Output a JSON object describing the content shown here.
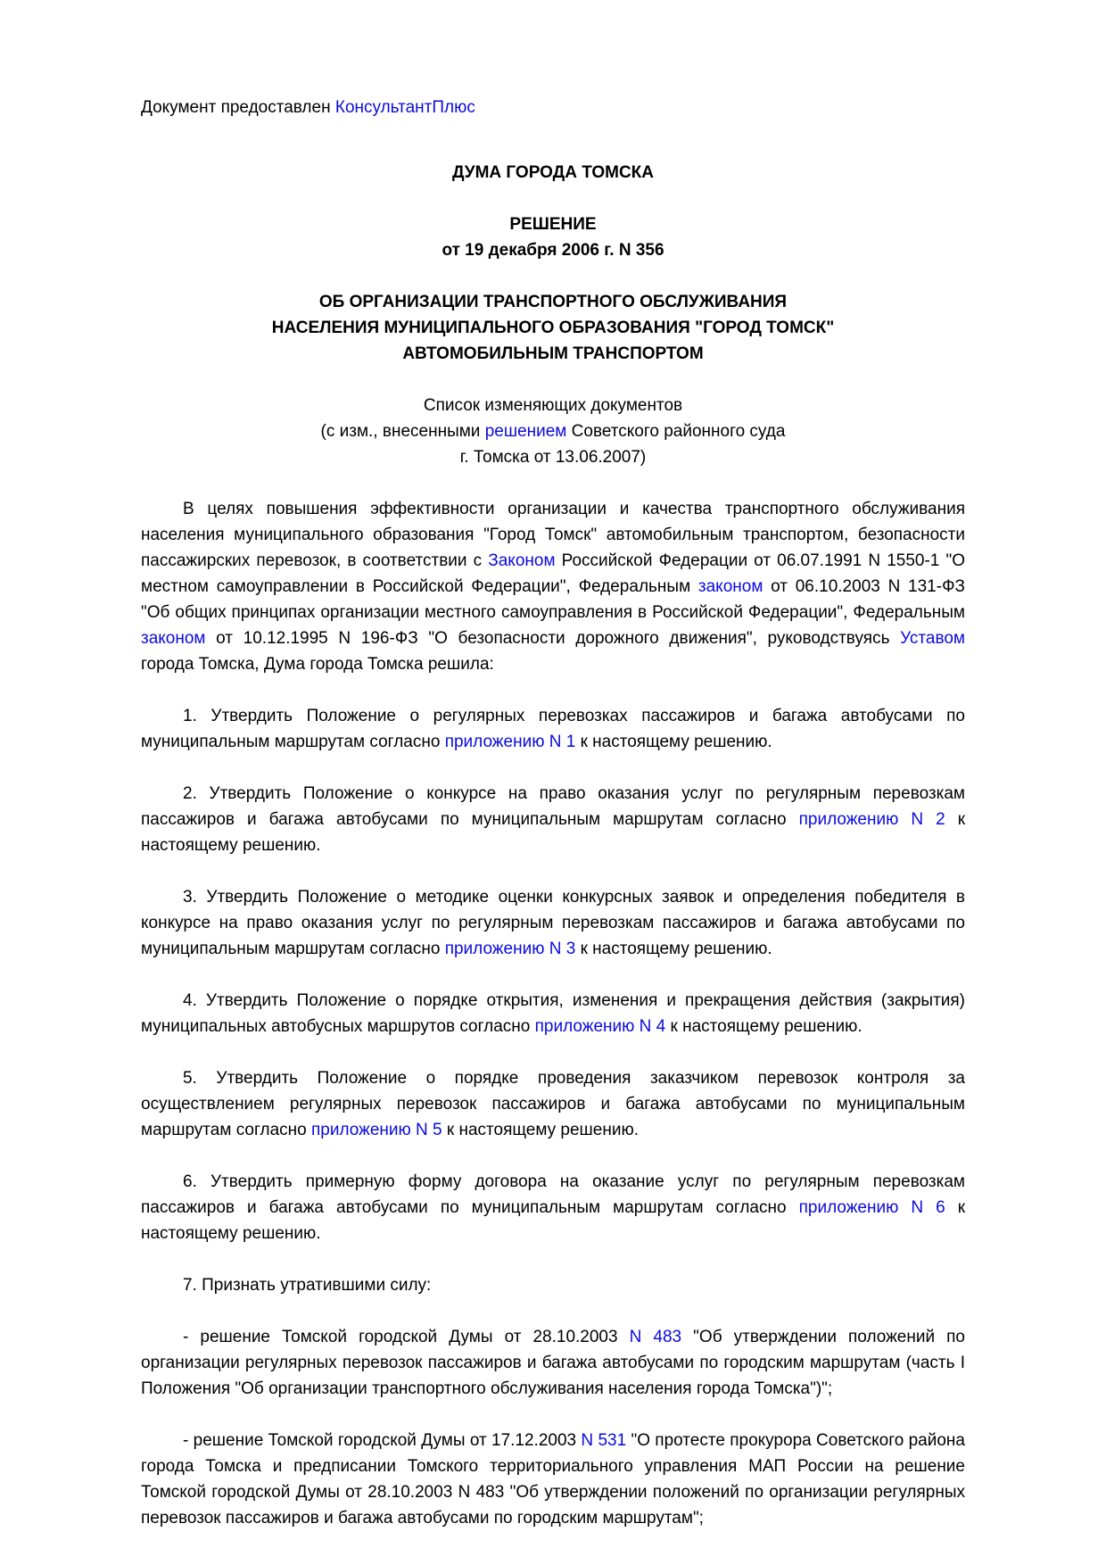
{
  "page": {
    "colors": {
      "text": "#000000",
      "link": "#0b0bdd",
      "background": "#ffffff"
    },
    "provider_note": {
      "prefix": "Документ предоставлен ",
      "link_label": "КонсультантПлюс"
    },
    "org_title": "ДУМА ГОРОДА ТОМСКА",
    "doc_heading": "РЕШЕНИЕ\nот 19 декабря 2006 г. N 356",
    "subject": "ОБ ОРГАНИЗАЦИИ ТРАНСПОРТНОГО ОБСЛУЖИВАНИЯ\nНАСЕЛЕНИЯ МУНИЦИПАЛЬНОГО ОБРАЗОВАНИЯ \"ГОРОД ТОМСК\"\nАВТОМОБИЛЬНЫМ ТРАНСПОРТОМ",
    "amendments": {
      "line1": "Список изменяющих документов",
      "line2_segments": [
        {
          "t": "(с изм., внесенными "
        },
        {
          "t": "решением",
          "link": true
        },
        {
          "t": " Советского районного суда"
        }
      ],
      "line3": "г. Томска от 13.06.2007)"
    },
    "paragraphs": [
      {
        "segments": [
          {
            "t": "В целях повышения эффективности организации и качества транспортного обслуживания населения муниципального образования \"Город Томск\" автомобильным транспортом, безопасности пассажирских перевозок, в соответствии с "
          },
          {
            "t": "Законом",
            "link": true
          },
          {
            "t": " Российской Федерации от 06.07.1991 N 1550-1 \"О местном самоуправлении в Российской Федерации\", Федеральным "
          },
          {
            "t": "законом",
            "link": true
          },
          {
            "t": " от 06.10.2003 N 131-ФЗ \"Об общих принципах организации местного самоуправления в Российской Федерации\", Федеральным "
          },
          {
            "t": "законом",
            "link": true
          },
          {
            "t": " от 10.12.1995 N 196-ФЗ \"О безопасности дорожного движения\", руководствуясь "
          },
          {
            "t": "Уставом",
            "link": true
          },
          {
            "t": " города Томска, Дума города Томска решила:"
          }
        ]
      },
      {
        "segments": [
          {
            "t": "1. Утвердить Положение о регулярных перевозках пассажиров и багажа автобусами по муниципальным маршрутам согласно "
          },
          {
            "t": "приложению N 1",
            "link": true
          },
          {
            "t": " к настоящему решению."
          }
        ]
      },
      {
        "segments": [
          {
            "t": "2. Утвердить Положение о конкурсе на право оказания услуг по регулярным перевозкам пассажиров и багажа автобусами по муниципальным маршрутам согласно "
          },
          {
            "t": "приложению N 2",
            "link": true
          },
          {
            "t": " к настоящему решению."
          }
        ]
      },
      {
        "segments": [
          {
            "t": "3. Утвердить Положение о методике оценки конкурсных заявок и определения победителя в конкурсе на право оказания услуг по регулярным перевозкам пассажиров и багажа автобусами по муниципальным маршрутам согласно "
          },
          {
            "t": "приложению N 3",
            "link": true
          },
          {
            "t": " к настоящему решению."
          }
        ]
      },
      {
        "segments": [
          {
            "t": "4. Утвердить Положение о порядке открытия, изменения и прекращения действия (закрытия) муниципальных автобусных маршрутов согласно "
          },
          {
            "t": "приложению N 4",
            "link": true
          },
          {
            "t": " к настоящему решению."
          }
        ]
      },
      {
        "segments": [
          {
            "t": "5. Утвердить Положение о порядке проведения заказчиком перевозок контроля за осуществлением регулярных перевозок пассажиров и багажа автобусами по муниципальным маршрутам согласно "
          },
          {
            "t": "приложению N 5",
            "link": true
          },
          {
            "t": " к настоящему решению."
          }
        ]
      },
      {
        "segments": [
          {
            "t": "6. Утвердить примерную форму договора на оказание услуг по регулярным перевозкам пассажиров и багажа автобусами по муниципальным маршрутам согласно "
          },
          {
            "t": "приложению N 6",
            "link": true
          },
          {
            "t": " к настоящему решению."
          }
        ]
      },
      {
        "segments": [
          {
            "t": "7. Признать утратившими силу:"
          }
        ]
      },
      {
        "segments": [
          {
            "t": "- решение Томской городской Думы от 28.10.2003 "
          },
          {
            "t": "N 483",
            "link": true
          },
          {
            "t": " \"Об утверждении положений по организации регулярных перевозок пассажиров и багажа автобусами по городским маршрутам (часть I Положения \"Об организации транспортного обслуживания населения города Томска\")\";"
          }
        ]
      },
      {
        "segments": [
          {
            "t": "- решение Томской городской Думы от 17.12.2003 "
          },
          {
            "t": "N 531",
            "link": true
          },
          {
            "t": " \"О протесте прокурора Советского района города Томска и предписании Томского территориального управления МАП России на решение Томской городской Думы от 28.10.2003 N 483 \"Об утверждении положений по организации регулярных перевозок пассажиров и багажа автобусами по городским маршрутам\";"
          }
        ]
      }
    ]
  }
}
